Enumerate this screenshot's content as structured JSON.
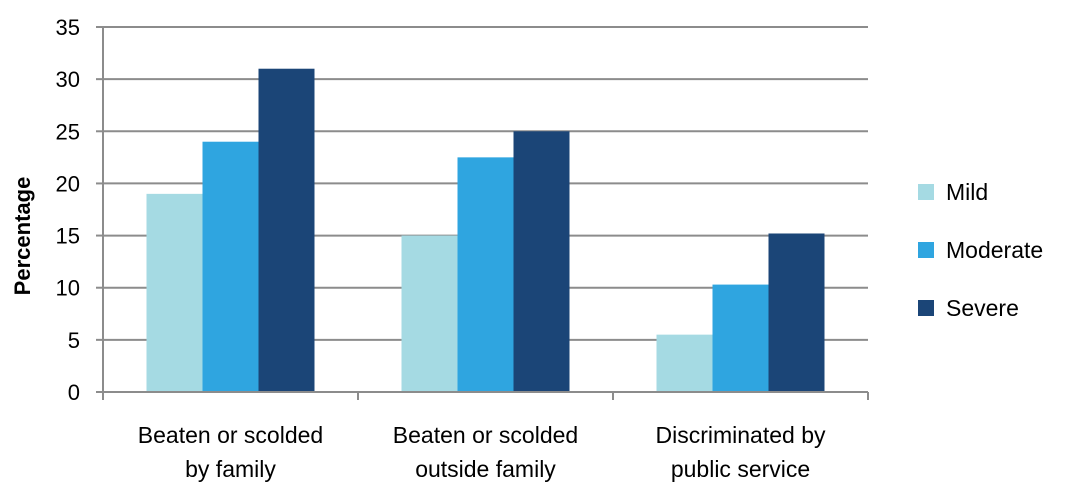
{
  "chart_data": {
    "type": "bar",
    "title": "",
    "xlabel": "",
    "ylabel": "Percentage",
    "ylim": [
      0,
      35
    ],
    "yticks": [
      0,
      5,
      10,
      15,
      20,
      25,
      30,
      35
    ],
    "grid": true,
    "legend_position": "right",
    "categories": [
      [
        "Beaten or scolded",
        "by family"
      ],
      [
        "Beaten or scolded",
        "outside family"
      ],
      [
        "Discriminated by",
        "public service"
      ]
    ],
    "series": [
      {
        "name": "Mild",
        "color": "#a5dae3",
        "values": [
          19,
          15,
          5.5
        ]
      },
      {
        "name": "Moderate",
        "color": "#2fa5e0",
        "values": [
          24,
          22.5,
          10.3
        ]
      },
      {
        "name": "Severe",
        "color": "#1b4577",
        "values": [
          31,
          25,
          15.2
        ]
      }
    ]
  }
}
